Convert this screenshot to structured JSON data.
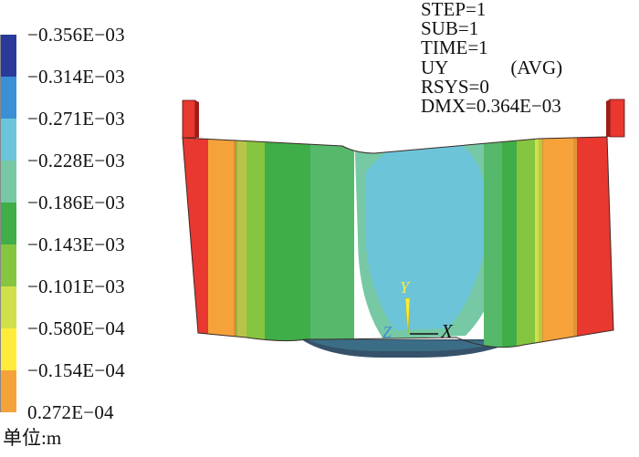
{
  "legend": {
    "labels": [
      "−0.356E−03",
      "−0.314E−03",
      "−0.271E−03",
      "−0.228E−03",
      "−0.186E−03",
      "−0.143E−03",
      "−0.101E−03",
      "−0.580E−04",
      "−0.154E−04",
      "0.272E−04"
    ],
    "colors": [
      "#2a3a9a",
      "#3b8fd6",
      "#6cc4dc",
      "#76c9a4",
      "#3fae48",
      "#86c540",
      "#cfe04a",
      "#ffeb3c",
      "#f5a23a",
      "#e8382f"
    ],
    "unit_label": "单位:m"
  },
  "info": {
    "step": "STEP=1",
    "sub": "SUB=1",
    "time": "TIME=1",
    "uy": "UY",
    "avg": "(AVG)",
    "rsys": "RSYS=0",
    "dmx": "DMX=0.364E−03"
  },
  "axes": {
    "y": "Y",
    "z": "Z",
    "x": "X"
  }
}
